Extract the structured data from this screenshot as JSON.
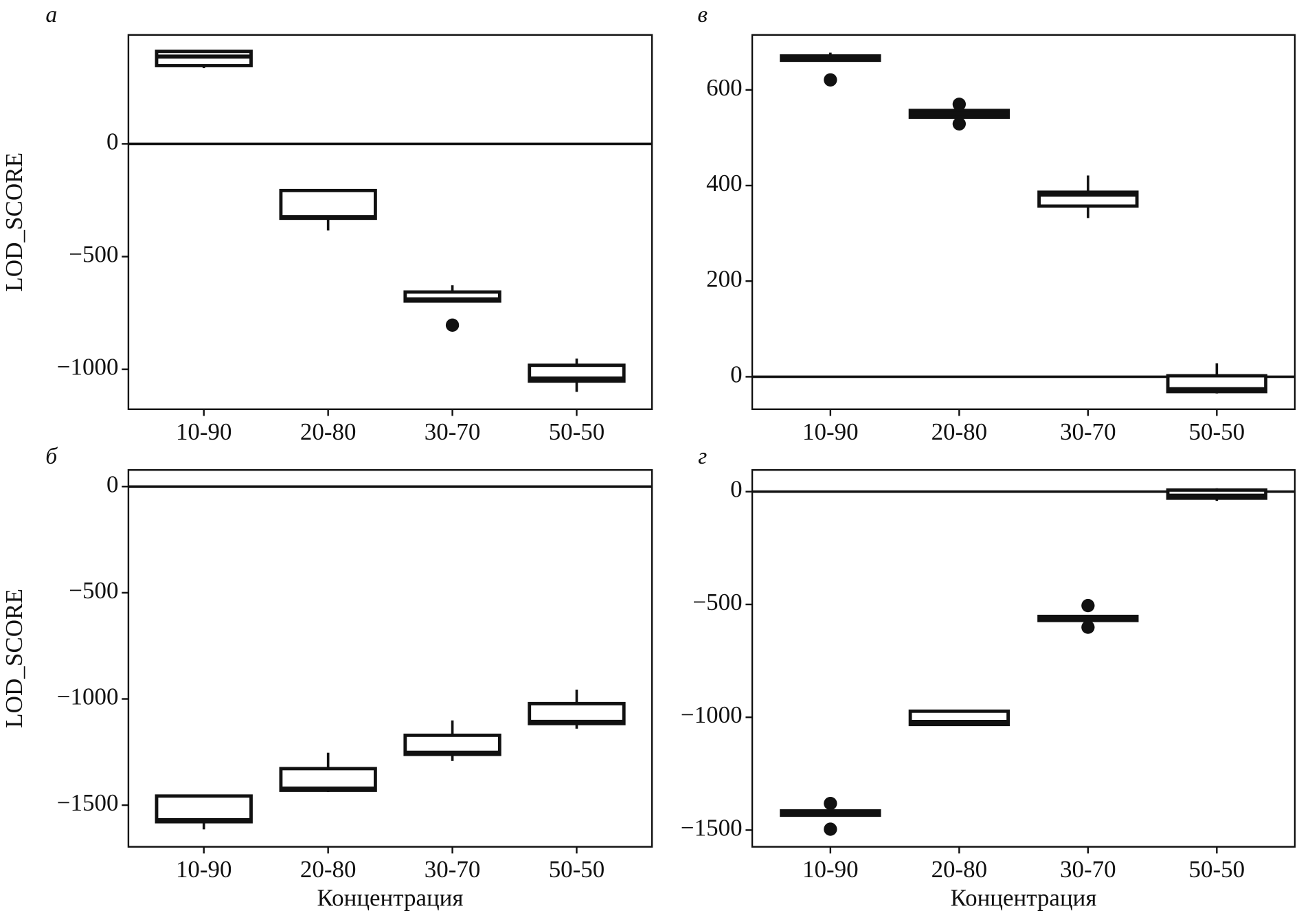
{
  "chart_data": [
    {
      "type": "box",
      "label": "а",
      "ylabel": "LOD_SCORE",
      "categories": [
        "10-90",
        "20-80",
        "30-70",
        "50-50"
      ],
      "boxes": [
        {
          "whisker_low": 336,
          "q1": 347,
          "median": 387,
          "q3": 410,
          "whisker_high": 410,
          "outliers": []
        },
        {
          "whisker_low": -384,
          "q1": -330,
          "median": -325,
          "q3": -207,
          "whisker_high": -203,
          "outliers": []
        },
        {
          "whisker_low": -697,
          "q1": -697,
          "median": -690,
          "q3": -657,
          "whisker_high": -627,
          "outliers": [
            -804
          ]
        },
        {
          "whisker_low": -1100,
          "q1": -1052,
          "median": -1041,
          "q3": -982,
          "whisker_high": -952,
          "outliers": []
        }
      ],
      "reference_line": 0,
      "ylim": [
        -1177,
        483
      ],
      "yticks": [
        {
          "value": -1000,
          "label": "−1000"
        },
        {
          "value": -500,
          "label": "−500"
        },
        0
      ]
    },
    {
      "type": "box",
      "label": "в",
      "categories": [
        "10-90",
        "20-80",
        "30-70",
        "50-50"
      ],
      "boxes": [
        {
          "whisker_low": 662,
          "q1": 662,
          "median": 668,
          "q3": 671,
          "whisker_high": 678,
          "outliers": [
            621
          ]
        },
        {
          "whisker_low": 543,
          "q1": 543,
          "median": 550,
          "q3": 557,
          "whisker_high": 557,
          "outliers": [
            570,
            529
          ]
        },
        {
          "whisker_low": 332,
          "q1": 357,
          "median": 381,
          "q3": 386,
          "whisker_high": 421,
          "outliers": []
        },
        {
          "whisker_low": -35,
          "q1": -31,
          "median": -26,
          "q3": 2,
          "whisker_high": 28,
          "outliers": []
        }
      ],
      "reference_line": 0,
      "ylim": [
        -68,
        715
      ],
      "yticks": [
        0,
        200,
        400,
        600
      ]
    },
    {
      "type": "box",
      "label": "б",
      "ylabel": "LOD_SCORE",
      "xlabel": "Концентрация",
      "categories": [
        "10-90",
        "20-80",
        "30-70",
        "50-50"
      ],
      "boxes": [
        {
          "whisker_low": -1614,
          "q1": -1578,
          "median": -1571,
          "q3": -1457,
          "whisker_high": -1457,
          "outliers": []
        },
        {
          "whisker_low": -1438,
          "q1": -1430,
          "median": -1422,
          "q3": -1328,
          "whisker_high": -1253,
          "outliers": []
        },
        {
          "whisker_low": -1292,
          "q1": -1261,
          "median": -1253,
          "q3": -1171,
          "whisker_high": -1101,
          "outliers": []
        },
        {
          "whisker_low": -1140,
          "q1": -1116,
          "median": -1108,
          "q3": -1022,
          "whisker_high": -956,
          "outliers": []
        }
      ],
      "reference_line": 0,
      "ylim": [
        -1696,
        78
      ],
      "yticks": [
        {
          "value": -1500,
          "label": "−1500"
        },
        {
          "value": -1000,
          "label": "−1000"
        },
        {
          "value": -500,
          "label": "−500"
        },
        0
      ]
    },
    {
      "type": "box",
      "label": "г",
      "xlabel": "Концентрация",
      "categories": [
        "10-90",
        "20-80",
        "30-70",
        "50-50"
      ],
      "boxes": [
        {
          "whisker_low": -1434,
          "q1": -1434,
          "median": -1424,
          "q3": -1415,
          "whisker_high": -1415,
          "outliers": [
            -1382,
            -1496
          ]
        },
        {
          "whisker_low": -1032,
          "q1": -1032,
          "median": -1021,
          "q3": -973,
          "whisker_high": -973,
          "outliers": []
        },
        {
          "whisker_low": -571,
          "q1": -571,
          "median": -562,
          "q3": -553,
          "whisker_high": -553,
          "outliers": [
            -505,
            -601
          ]
        },
        {
          "whisker_low": -41,
          "q1": -29,
          "median": -18,
          "q3": 7,
          "whisker_high": 15,
          "outliers": []
        }
      ],
      "reference_line": 0,
      "ylim": [
        -1574,
        96
      ],
      "yticks": [
        {
          "value": -1500,
          "label": "−1500"
        },
        {
          "value": -1000,
          "label": "−1000"
        },
        {
          "value": -500,
          "label": "−500"
        },
        0
      ]
    }
  ]
}
